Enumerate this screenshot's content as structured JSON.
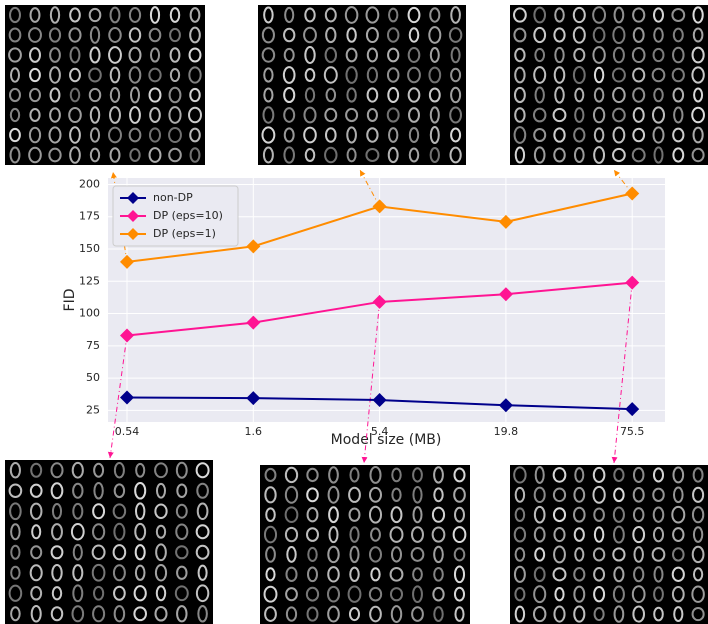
{
  "chart_data": {
    "type": "line",
    "xlabel": "Model size (MB)",
    "ylabel": "FID",
    "categories": [
      "0.54",
      "1.6",
      "5.4",
      "19.8",
      "75.5"
    ],
    "series": [
      {
        "name": "non-DP",
        "color": "#00008b",
        "values": [
          35,
          34.5,
          33,
          29,
          26
        ]
      },
      {
        "name": "DP (eps=10)",
        "color": "#ff1493",
        "values": [
          83,
          93,
          109,
          115,
          124
        ]
      },
      {
        "name": "DP (eps=1)",
        "color": "#ff8c00",
        "values": [
          140,
          152,
          183,
          171,
          193
        ]
      }
    ],
    "ylim": [
      16,
      205
    ],
    "yticks": [
      25,
      50,
      75,
      100,
      125,
      150,
      175,
      200
    ],
    "grid": true,
    "legend": "upper left"
  }
}
